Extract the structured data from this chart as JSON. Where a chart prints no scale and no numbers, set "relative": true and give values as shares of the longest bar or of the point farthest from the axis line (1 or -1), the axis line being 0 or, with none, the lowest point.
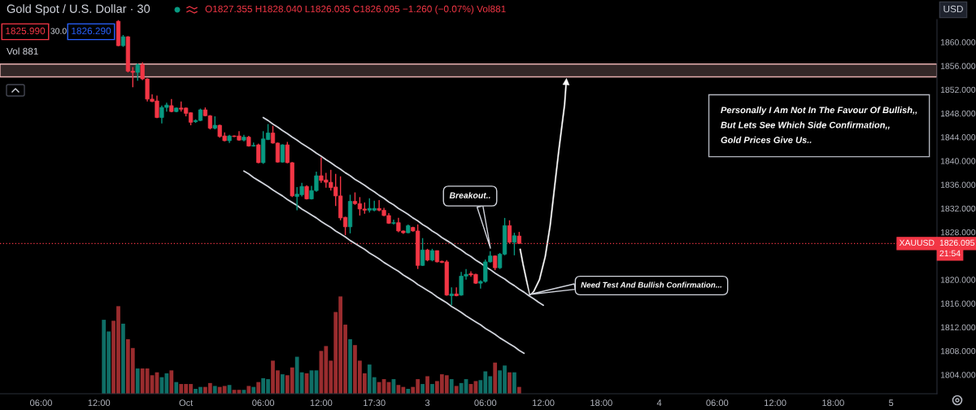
{
  "chart_data": [
    {
      "type": "candlestick",
      "title": "Gold Spot / U.S. Dollar · 30",
      "categories": [
        null,
        null,
        null,
        null,
        null,
        null,
        null,
        null,
        "06:00",
        null,
        null,
        null,
        null,
        null,
        null,
        null,
        null,
        null,
        null,
        null,
        "12:00",
        null,
        null,
        null,
        null,
        null,
        null,
        null,
        null,
        null,
        null,
        null,
        null,
        null,
        null,
        null,
        null,
        null,
        "Oct",
        null,
        null,
        null,
        null,
        null,
        null,
        null,
        null,
        null,
        null,
        null,
        null,
        null,
        null,
        null,
        "06:00",
        null,
        null,
        null,
        null,
        null,
        null,
        null,
        null,
        null,
        null,
        null,
        "12:00",
        null,
        null,
        null,
        null,
        null,
        null,
        null,
        null,
        null,
        null,
        "17:30",
        null,
        null,
        null,
        null,
        null,
        null,
        null,
        null,
        null,
        null,
        "3",
        null,
        null,
        null,
        null,
        null,
        null,
        null,
        null,
        null,
        null,
        null,
        "06:00",
        null,
        null,
        null,
        null,
        null,
        null,
        null,
        null,
        null,
        null,
        null,
        "12:00",
        null,
        null,
        null,
        null,
        null,
        null,
        null,
        null,
        null,
        null,
        null,
        "18:00",
        null,
        null,
        null,
        null,
        null,
        null,
        null,
        null,
        null,
        null,
        null,
        "4",
        null,
        null,
        null,
        null,
        null,
        null,
        null,
        null,
        null,
        null,
        null,
        "06:00",
        null,
        null,
        null,
        null,
        null,
        null,
        null,
        null,
        null,
        null,
        null,
        "12:00",
        null,
        null,
        null,
        null,
        null,
        null,
        null,
        null,
        null,
        null,
        null,
        "18:00",
        null,
        null,
        null,
        null,
        null,
        null,
        null,
        null,
        null,
        null,
        null,
        "5",
        null,
        null,
        null,
        null,
        null,
        null,
        null,
        null,
        null
      ],
      "ohlc": [
        null,
        null,
        null,
        null,
        null,
        null,
        null,
        null,
        null,
        null,
        null,
        null,
        null,
        null,
        null,
        null,
        null,
        null,
        null,
        null,
        null,
        null,
        null,
        null,
        [
          1863.5,
          1863.7,
          1859.3,
          1859.4
        ],
        [
          1859.4,
          1861.2,
          1859.2,
          1860.9
        ],
        [
          1860.9,
          1861.0,
          1854.9,
          1855.1
        ],
        [
          1855.1,
          1855.8,
          1852.4,
          1854.9
        ],
        [
          1854.9,
          1856.4,
          1853.5,
          1856.2
        ],
        [
          1856.2,
          1856.6,
          1853.6,
          1853.8
        ],
        [
          1853.8,
          1853.9,
          1850.0,
          1850.4
        ],
        [
          1850.4,
          1851.2,
          1849.9,
          1850.0
        ],
        [
          1850.1,
          1851.0,
          1847.2,
          1847.3
        ],
        [
          1847.3,
          1849.3,
          1846.3,
          1849.0
        ],
        [
          1849.0,
          1849.8,
          1848.3,
          1849.4
        ],
        [
          1849.3,
          1850.4,
          1848.2,
          1848.3
        ],
        [
          1848.3,
          1849.0,
          1848.2,
          1848.9
        ],
        [
          1848.9,
          1850.0,
          1848.3,
          1848.7
        ],
        [
          1848.9,
          1849.0,
          1847.5,
          1848.0
        ],
        [
          1848.1,
          1848.2,
          1846.0,
          1846.5
        ],
        [
          1846.6,
          1847.0,
          1846.4,
          1846.8
        ],
        [
          1846.8,
          1848.8,
          1846.7,
          1848.6
        ],
        [
          1848.6,
          1849.0,
          1847.5,
          1847.6
        ],
        [
          1847.6,
          1847.7,
          1845.3,
          1845.5
        ],
        [
          1845.5,
          1847.5,
          1845.3,
          1846.0
        ],
        [
          1846.0,
          1846.1,
          1843.9,
          1844.1
        ],
        [
          1844.2,
          1844.8,
          1843.3,
          1843.4
        ],
        [
          1843.4,
          1844.4,
          1843.0,
          1844.2
        ],
        [
          1844.2,
          1844.3,
          1844.0,
          1844.1
        ],
        [
          1844.2,
          1845.0,
          1843.4,
          1843.5
        ],
        [
          1843.5,
          1844.4,
          1843.3,
          1844.0
        ],
        [
          1844.0,
          1844.2,
          1842.4,
          1842.5
        ],
        [
          1842.5,
          1843.1,
          1842.4,
          1842.6
        ],
        [
          1842.7,
          1842.9,
          1839.6,
          1839.7
        ],
        [
          1839.7,
          1845.0,
          1839.5,
          1843.7
        ],
        [
          1843.6,
          1846.2,
          1843.5,
          1844.7
        ],
        [
          1844.7,
          1845.9,
          1842.9,
          1843.0
        ],
        [
          1843.0,
          1843.1,
          1839.7,
          1839.8
        ],
        [
          1839.8,
          1842.8,
          1839.7,
          1842.7
        ],
        [
          1842.7,
          1843.2,
          1839.6,
          1839.7
        ],
        [
          1839.7,
          1839.8,
          1833.9,
          1834.1
        ],
        [
          1834.0,
          1835.6,
          1831.7,
          1834.4
        ],
        [
          1834.3,
          1836.3,
          1834.0,
          1835.7
        ],
        [
          1835.7,
          1835.9,
          1833.5,
          1833.6
        ],
        [
          1833.6,
          1835.8,
          1833.5,
          1835.0
        ],
        [
          1835.0,
          1838.2,
          1834.8,
          1837.5
        ],
        [
          1837.5,
          1840.6,
          1836.3,
          1836.7
        ],
        [
          1836.8,
          1838.0,
          1835.5,
          1836.4
        ],
        [
          1836.4,
          1838.5,
          1835.0,
          1835.5
        ],
        [
          1835.6,
          1837.8,
          1832.4,
          1834.1
        ],
        [
          1834.1,
          1837.4,
          1830.0,
          1830.4
        ],
        [
          1830.5,
          1830.6,
          1827.5,
          1828.9
        ],
        [
          1828.9,
          1834.3,
          1827.8,
          1833.2
        ],
        [
          1833.2,
          1834.7,
          1832.6,
          1832.8
        ],
        [
          1832.8,
          1833.9,
          1830.8,
          1831.9
        ],
        [
          1831.9,
          1833.0,
          1831.1,
          1831.7
        ],
        [
          1831.7,
          1833.7,
          1831.3,
          1832.0
        ],
        [
          1831.7,
          1833.3,
          1831.5,
          1832.0
        ],
        [
          1832.0,
          1833.4,
          1831.5,
          1831.7
        ],
        [
          1831.7,
          1832.1,
          1830.7,
          1830.8
        ],
        [
          1830.8,
          1831.2,
          1829.4,
          1829.5
        ],
        [
          1829.5,
          1830.1,
          1829.3,
          1829.6
        ],
        [
          1829.6,
          1830.4,
          1828.0,
          1828.2
        ],
        [
          1828.2,
          1828.3,
          1827.7,
          1827.9
        ],
        [
          1827.9,
          1829.3,
          1827.8,
          1829.1
        ],
        [
          1828.8,
          1828.9,
          1828.1,
          1828.2
        ],
        [
          1828.2,
          1829.3,
          1821.8,
          1822.4
        ],
        [
          1822.4,
          1827.0,
          1822.3,
          1825.0
        ],
        [
          1825.0,
          1825.2,
          1823.1,
          1823.3
        ],
        [
          1823.3,
          1825.2,
          1823.1,
          1824.9
        ],
        [
          1824.9,
          1824.9,
          1822.9,
          1823.0
        ],
        [
          1823.1,
          1823.2,
          1822.8,
          1822.9
        ],
        [
          1823.0,
          1823.3,
          1817.3,
          1817.4
        ],
        [
          1817.3,
          1818.7,
          1815.7,
          1817.6
        ],
        [
          1817.6,
          1818.7,
          1817.2,
          1817.3
        ],
        [
          1817.4,
          1821.3,
          1817.3,
          1820.6
        ],
        [
          1820.6,
          1821.8,
          1820.0,
          1820.9
        ],
        [
          1821.0,
          1821.4,
          1820.5,
          1820.8
        ],
        [
          1820.9,
          1821.0,
          1819.3,
          1819.4
        ],
        [
          1819.4,
          1819.9,
          1818.5,
          1819.7
        ],
        [
          1819.7,
          1823.4,
          1819.5,
          1823.0
        ],
        [
          1823.0,
          1824.8,
          1822.9,
          1824.0
        ],
        [
          1824.0,
          1824.1,
          1821.6,
          1822.0
        ],
        [
          1822.0,
          1824.5,
          1821.8,
          1824.3
        ],
        [
          1824.3,
          1830.4,
          1824.1,
          1829.1
        ],
        [
          1829.1,
          1830.0,
          1826.1,
          1826.3
        ],
        [
          1826.3,
          1827.9,
          1824.1,
          1827.4
        ],
        [
          1827.355,
          1828.04,
          1826.035,
          1826.095
        ],
        null,
        null,
        null,
        null,
        null,
        null,
        null,
        null,
        null,
        null,
        null,
        null,
        null,
        null,
        null,
        null,
        null,
        null,
        null,
        null,
        null,
        null,
        null,
        null,
        null,
        null,
        null,
        null,
        null,
        null,
        null,
        null,
        null,
        null,
        null,
        null,
        null,
        null,
        null,
        null,
        null,
        null,
        null,
        null,
        null,
        null,
        null,
        null,
        null,
        null,
        null,
        null,
        null,
        null,
        null,
        null,
        null,
        null,
        null,
        null,
        null,
        null,
        null,
        null,
        null,
        null,
        null,
        null,
        null,
        null,
        null,
        null,
        null,
        null,
        null,
        null,
        null,
        null,
        null,
        null,
        null,
        null,
        null,
        null,
        null,
        null
      ],
      "colors": [
        null,
        null,
        null,
        null,
        null,
        null,
        null,
        null,
        null,
        null,
        null,
        null,
        null,
        null,
        null,
        null,
        null,
        null,
        null,
        null,
        null,
        null,
        null,
        null,
        "#f23645",
        "#089981",
        "#f23645",
        "#f23645",
        "#089981",
        "#f23645",
        "#f23645",
        "#f23645",
        "#f23645",
        "#089981",
        "#089981",
        "#f23645",
        "#089981",
        "#f23645",
        "#f23645",
        "#f23645",
        "#089981",
        "#089981",
        "#f23645",
        "#f23645",
        "#089981",
        "#f23645",
        "#f23645",
        "#089981",
        "#f23645",
        "#f23645",
        "#089981",
        "#f23645",
        "#089981",
        "#f23645",
        "#089981",
        "#089981",
        "#f23645",
        "#f23645",
        "#089981",
        "#f23645",
        "#f23645",
        "#089981",
        "#089981",
        "#f23645",
        "#089981",
        "#089981",
        "#f23645",
        "#f23645",
        "#f23645",
        "#f23645",
        "#f23645",
        "#f23645",
        "#089981",
        "#f23645",
        "#f23645",
        "#f23645",
        "#089981",
        "#089981",
        "#f23645",
        "#f23645",
        "#f23645",
        "#089981",
        "#f23645",
        "#f23645",
        "#089981",
        "#f23645",
        "#f23645",
        "#089981",
        "#f23645",
        "#089981",
        "#f23645",
        "#f23645",
        "#f23645",
        "#089981",
        "#f23645",
        "#089981",
        "#089981",
        "#f23645",
        "#f23645",
        "#089981",
        "#089981",
        "#089981",
        "#f23645",
        "#089981",
        "#089981",
        "#f23645",
        "#089981",
        "#f23645",
        null,
        null,
        null,
        null,
        null,
        null,
        null,
        null,
        null,
        null,
        null,
        null,
        null,
        null,
        null,
        null,
        null,
        null,
        null,
        null,
        null,
        null,
        null,
        null,
        null,
        null,
        null,
        null,
        null,
        null,
        null,
        null,
        null,
        null,
        null,
        null,
        null,
        null,
        null,
        null,
        null,
        null,
        null,
        null,
        null,
        null,
        null,
        null,
        null,
        null,
        null,
        null,
        null,
        null,
        null,
        null,
        null,
        null,
        null,
        null,
        null,
        null,
        null,
        null,
        null,
        null,
        null,
        null,
        null,
        null,
        null,
        null,
        null,
        null,
        null,
        null,
        null,
        null,
        null,
        null,
        null,
        null,
        null,
        null,
        null,
        null
      ],
      "series": [
        {
          "type": "line",
          "color": "#d1d4dc",
          "values": [
            null,
            null,
            null,
            null,
            null,
            null,
            null,
            null,
            null,
            null,
            null,
            null,
            null,
            null,
            null,
            null,
            null,
            null,
            null,
            null,
            null,
            null,
            null,
            null,
            null,
            null,
            null,
            null,
            null,
            null,
            null,
            null,
            null,
            null,
            null,
            null,
            null,
            null,
            null,
            null,
            null,
            null,
            null,
            null,
            null,
            null,
            null,
            null,
            null,
            null,
            null,
            null,
            null,
            null,
            1847.3,
            1846.8,
            1846.2,
            1845.7,
            1845.1,
            1844.6,
            1844.0,
            1843.5,
            1842.9,
            1842.4,
            1841.9,
            1841.3,
            1840.8,
            1840.2,
            1839.7,
            1839.1,
            1838.6,
            1838.0,
            1837.5,
            1836.9,
            1836.4,
            1835.9,
            1835.3,
            1834.8,
            1834.2,
            1833.7,
            1833.1,
            1832.6,
            1832.0,
            1831.5,
            1831.0,
            1830.4,
            1829.9,
            1829.3,
            1828.8,
            1828.2,
            1827.7,
            1827.1,
            1826.6,
            1826.1,
            1825.5,
            1825.0,
            1824.4,
            1823.9,
            1823.3,
            1822.8,
            1822.2,
            1821.7,
            1821.1,
            1820.6,
            1820.1,
            1819.5,
            1819.0,
            1818.4,
            1817.9,
            1817.3,
            1816.8,
            1816.2,
            1815.7,
            null,
            null,
            null,
            null,
            null,
            null,
            null,
            null,
            null,
            null,
            null,
            null,
            null,
            null,
            null,
            null,
            null,
            null,
            null,
            null,
            null,
            null,
            null,
            null,
            null,
            null,
            null,
            null,
            null,
            null,
            null,
            null,
            null,
            null,
            null,
            null,
            null,
            null,
            null,
            null,
            null,
            null,
            null,
            null,
            null,
            null,
            null,
            null,
            null,
            null,
            null,
            null,
            null,
            null,
            null,
            null,
            null,
            null,
            null,
            null,
            null,
            null,
            null,
            null,
            null,
            null,
            null,
            null,
            null,
            null,
            null,
            null,
            null,
            null,
            null,
            null,
            null,
            null,
            null,
            null,
            null
          ]
        },
        {
          "type": "line",
          "color": "#d1d4dc",
          "values": [
            null,
            null,
            null,
            null,
            null,
            null,
            null,
            null,
            null,
            null,
            null,
            null,
            null,
            null,
            null,
            null,
            null,
            null,
            null,
            null,
            null,
            null,
            null,
            null,
            null,
            null,
            null,
            null,
            null,
            null,
            null,
            null,
            null,
            null,
            null,
            null,
            null,
            null,
            null,
            null,
            null,
            null,
            null,
            null,
            null,
            null,
            null,
            null,
            null,
            null,
            1838.3,
            1837.8,
            1837.2,
            1836.7,
            1836.2,
            1835.7,
            1835.1,
            1834.6,
            1834.1,
            1833.5,
            1833.0,
            1832.5,
            1831.9,
            1831.4,
            1830.9,
            1830.4,
            1829.8,
            1829.3,
            1828.8,
            1828.2,
            1827.7,
            1827.2,
            1826.6,
            1826.1,
            1825.6,
            1825.1,
            1824.5,
            1824.0,
            1823.5,
            1822.9,
            1822.4,
            1821.9,
            1821.4,
            1820.8,
            1820.3,
            1819.8,
            1819.2,
            1818.7,
            1818.2,
            1817.7,
            1817.1,
            1816.6,
            1816.1,
            1815.5,
            1815.0,
            1814.5,
            1813.9,
            1813.4,
            1812.9,
            1812.4,
            1811.8,
            1811.3,
            1810.8,
            1810.2,
            1809.7,
            1809.2,
            1808.7,
            1808.1,
            1807.6,
            null,
            null,
            null,
            null,
            null,
            null,
            null,
            null,
            null,
            null,
            null,
            null,
            null,
            null,
            null,
            null,
            null,
            null,
            null,
            null,
            null,
            null,
            null,
            null,
            null,
            null,
            null,
            null,
            null,
            null,
            null,
            null,
            null,
            null,
            null,
            null,
            null,
            null,
            null,
            null,
            null,
            null,
            null,
            null,
            null,
            null,
            null,
            null,
            null,
            null,
            null,
            null,
            null,
            null,
            null,
            null,
            null,
            null,
            null,
            null,
            null,
            null,
            null,
            null,
            null,
            null,
            null,
            null,
            null,
            null,
            null,
            null,
            null,
            null,
            null,
            null,
            null,
            null,
            null,
            null,
            null,
            null,
            null,
            null,
            null
          ]
        }
      ],
      "bands": [
        {
          "axis": "y",
          "from": 1854.15,
          "to": 1856.3,
          "color": "#e8b0b0"
        }
      ],
      "ylim": [
        1800.8,
        1863.8
      ],
      "yticks": [
        {
          "value": 1804,
          "label": "1804.000"
        },
        {
          "value": 1808,
          "label": "1808.000"
        },
        {
          "value": 1812,
          "label": "1812.000"
        },
        {
          "value": 1816,
          "label": "1816.000"
        },
        {
          "value": 1820,
          "label": "1820.000"
        },
        {
          "value": 1828,
          "label": "1828.000"
        },
        {
          "value": 1832,
          "label": "1832.000"
        },
        {
          "value": 1836,
          "label": "1836.000"
        },
        {
          "value": 1840,
          "label": "1840.000"
        },
        {
          "value": 1844,
          "label": "1844.000"
        },
        {
          "value": 1848,
          "label": "1848.000"
        },
        {
          "value": 1852,
          "label": "1852.000"
        },
        {
          "value": 1856,
          "label": "1856.000"
        },
        {
          "value": 1860,
          "label": "1860.000"
        }
      ],
      "ref_lines": [
        {
          "axis": "y",
          "value": 1826.095,
          "label": "1826.095",
          "color": "#f23645",
          "line_style": "dotted"
        }
      ],
      "annotations": [
        "O1827.355 H1828.040 L1826.035 C1826.095 −1.260 (−0.07%) Vol881",
        "1825.990",
        "30.0",
        "1826.290",
        "Vol 881",
        "USD",
        "XAUUSD",
        "21:54",
        "Personally I Am Not In The Favour Of Bullish,,\nBut Lets See Which Side Confirmation,,\nGold Prices Give Us..",
        "Breakout..",
        "Need Test And Bullish Confirmation..."
      ]
    },
    {
      "type": "bar",
      "relative": true,
      "tick_labels": false,
      "categories": [
        null,
        null,
        null,
        null,
        null,
        null,
        null,
        null,
        null,
        null,
        null,
        null,
        null,
        null,
        null,
        null,
        null,
        null,
        null,
        null,
        null,
        null,
        null,
        null,
        null,
        null,
        null,
        null,
        null,
        null,
        null,
        null,
        null,
        null,
        null,
        null,
        null,
        null,
        null,
        null,
        null,
        null,
        null,
        null,
        null,
        null,
        null,
        null,
        null,
        null,
        null,
        null,
        null,
        null,
        null,
        null,
        null,
        null,
        null,
        null,
        null,
        null,
        null,
        null,
        null,
        null,
        null,
        null,
        null,
        null,
        null,
        null,
        null,
        null,
        null,
        null,
        null,
        null,
        null,
        null,
        null,
        null,
        null,
        null,
        null,
        null,
        null,
        null,
        null,
        null,
        null,
        null,
        null,
        null,
        null,
        null,
        null,
        null,
        null,
        null,
        null,
        null,
        null,
        null,
        null,
        null,
        null,
        null,
        null,
        null,
        null,
        null,
        null,
        null,
        null,
        null,
        null,
        null,
        null,
        null,
        null,
        null,
        null,
        null,
        null,
        null,
        null,
        null,
        null,
        null,
        null,
        null,
        null,
        null,
        null,
        null,
        null,
        null,
        null,
        null,
        null,
        null,
        null,
        null,
        null,
        null,
        null,
        null,
        null,
        null,
        null,
        null,
        null,
        null,
        null,
        null,
        null,
        null,
        null,
        null,
        null,
        null,
        null,
        null,
        null,
        null,
        null,
        null,
        null,
        null,
        null,
        null,
        null,
        null,
        null,
        null,
        null,
        null,
        null,
        null,
        null,
        null,
        null,
        null,
        null,
        null,
        null,
        null,
        null,
        null,
        null,
        null,
        null,
        null
      ],
      "values": [
        null,
        null,
        null,
        null,
        null,
        null,
        null,
        null,
        null,
        null,
        null,
        null,
        null,
        null,
        null,
        null,
        null,
        null,
        null,
        null,
        null,
        0.76,
        0.64,
        0.75,
        0.9,
        0.72,
        0.56,
        0.47,
        0.26,
        0.26,
        0.26,
        0.19,
        0.22,
        0.17,
        0.21,
        0.24,
        0.12,
        0.1,
        0.1,
        0.1,
        0.05,
        0.07,
        0.07,
        0.11,
        0.08,
        0.07,
        0.08,
        0.09,
        0.04,
        0.04,
        0.04,
        0.08,
        0.07,
        0.12,
        0.16,
        0.15,
        0.34,
        0.24,
        0.2,
        0.19,
        0.27,
        0.38,
        0.22,
        0.21,
        0.24,
        0.24,
        0.44,
        0.49,
        0.34,
        0.84,
        1,
        0.71,
        0.56,
        0.5,
        0.34,
        0.21,
        0.3,
        0.17,
        0.12,
        0.15,
        0.12,
        0.15,
        0.09,
        0.07,
        0.05,
        0.07,
        0.15,
        0.1,
        0.18,
        0.1,
        0.13,
        0.2,
        0.19,
        0.15,
        0.08,
        0.11,
        0.15,
        0.1,
        0.13,
        0.14,
        0.23,
        0.18,
        0.32,
        0.24,
        0.29,
        0.22,
        0.22,
        0.07,
        null,
        null,
        null,
        null,
        null,
        null,
        null,
        null,
        null,
        null,
        null,
        null,
        null,
        null,
        null,
        null,
        null,
        null,
        null,
        null,
        null,
        null,
        null,
        null,
        null,
        null,
        null,
        null,
        null,
        null,
        null,
        null,
        null,
        null,
        null,
        null,
        null,
        null,
        null,
        null,
        null,
        null,
        null,
        null,
        null,
        null,
        null,
        null,
        null,
        null,
        null,
        null,
        null,
        null,
        null,
        null,
        null,
        null,
        null,
        null,
        null,
        null,
        null,
        null,
        null,
        null,
        null,
        null,
        null,
        null,
        null,
        null,
        null,
        null,
        null,
        null,
        null,
        null,
        null,
        null,
        null,
        null,
        null,
        null,
        null,
        null
      ],
      "colors": [
        null,
        null,
        null,
        null,
        null,
        null,
        null,
        null,
        null,
        null,
        null,
        null,
        null,
        null,
        null,
        null,
        null,
        null,
        null,
        null,
        null,
        "#0f6e66",
        "#0f6e66",
        "#9a2c2e",
        "#9a2c2e",
        "#0f6e66",
        "#9a2c2e",
        "#9a2c2e",
        "#0f6e66",
        "#9a2c2e",
        "#9a2c2e",
        "#9a2c2e",
        "#9a2c2e",
        "#0f6e66",
        "#0f6e66",
        "#9a2c2e",
        "#0f6e66",
        "#9a2c2e",
        "#9a2c2e",
        "#9a2c2e",
        "#0f6e66",
        "#0f6e66",
        "#9a2c2e",
        "#9a2c2e",
        "#0f6e66",
        "#9a2c2e",
        "#9a2c2e",
        "#0f6e66",
        "#9a2c2e",
        "#9a2c2e",
        "#0f6e66",
        "#9a2c2e",
        "#0f6e66",
        "#9a2c2e",
        "#0f6e66",
        "#0f6e66",
        "#9a2c2e",
        "#9a2c2e",
        "#0f6e66",
        "#9a2c2e",
        "#9a2c2e",
        "#0f6e66",
        "#0f6e66",
        "#9a2c2e",
        "#0f6e66",
        "#0f6e66",
        "#9a2c2e",
        "#9a2c2e",
        "#9a2c2e",
        "#9a2c2e",
        "#9a2c2e",
        "#9a2c2e",
        "#0f6e66",
        "#9a2c2e",
        "#9a2c2e",
        "#9a2c2e",
        "#0f6e66",
        "#0f6e66",
        "#9a2c2e",
        "#9a2c2e",
        "#9a2c2e",
        "#0f6e66",
        "#9a2c2e",
        "#9a2c2e",
        "#0f6e66",
        "#9a2c2e",
        "#9a2c2e",
        "#0f6e66",
        "#9a2c2e",
        "#0f6e66",
        "#9a2c2e",
        "#9a2c2e",
        "#9a2c2e",
        "#0f6e66",
        "#9a2c2e",
        "#0f6e66",
        "#0f6e66",
        "#9a2c2e",
        "#9a2c2e",
        "#0f6e66",
        "#0f6e66",
        "#0f6e66",
        "#9a2c2e",
        "#0f6e66",
        "#0f6e66",
        "#9a2c2e",
        "#0f6e66",
        "#9a2c2e",
        null,
        null,
        null,
        null,
        null,
        null,
        null,
        null,
        null,
        null,
        null,
        null,
        null,
        null,
        null,
        null,
        null,
        null,
        null,
        null,
        null,
        null,
        null,
        null,
        null,
        null,
        null,
        null,
        null,
        null,
        null,
        null,
        null,
        null,
        null,
        null,
        null,
        null,
        null,
        null,
        null,
        null,
        null,
        null,
        null,
        null,
        null,
        null,
        null,
        null,
        null,
        null,
        null,
        null,
        null,
        null,
        null,
        null,
        null,
        null,
        null,
        null,
        null,
        null,
        null,
        null,
        null,
        null,
        null,
        null,
        null,
        null,
        null,
        null,
        null,
        null,
        null,
        null,
        null,
        null,
        null,
        null,
        null,
        null,
        null,
        null
      ]
    }
  ]
}
